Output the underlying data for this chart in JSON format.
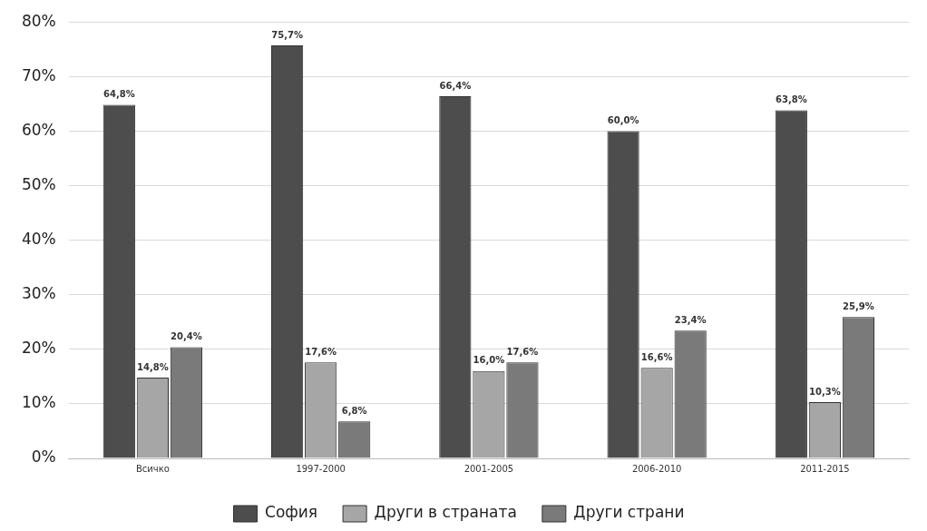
{
  "chart_data": {
    "type": "bar",
    "categories": [
      "Всичко",
      "1997-2000",
      "2001-2005",
      "2006-2010",
      "2011-2015"
    ],
    "series": [
      {
        "name": "София",
        "color": "#4d4d4d",
        "values": [
          64.8,
          75.7,
          66.4,
          60.0,
          63.8
        ],
        "value_labels": [
          "64,8%",
          "75,7%",
          "66,4%",
          "60,0%",
          "63,8%"
        ]
      },
      {
        "name": "Други в страната",
        "color": "#a6a6a6",
        "values": [
          14.8,
          17.6,
          16.0,
          16.6,
          10.3
        ],
        "value_labels": [
          "14,8%",
          "17,6%",
          "16,0%",
          "16,6%",
          "10,3%"
        ]
      },
      {
        "name": "Други страни",
        "color": "#7a7a7a",
        "values": [
          20.4,
          6.8,
          17.6,
          23.4,
          25.9
        ],
        "value_labels": [
          "20,4%",
          "6,8%",
          "17,6%",
          "23,4%",
          "25,9%"
        ]
      }
    ],
    "ylim": [
      0,
      80
    ],
    "yticks": [
      {
        "value": 0,
        "label": "0%"
      },
      {
        "value": 10,
        "label": "10%"
      },
      {
        "value": 20,
        "label": "20%"
      },
      {
        "value": 30,
        "label": "30%"
      },
      {
        "value": 40,
        "label": "40%"
      },
      {
        "value": 50,
        "label": "50%"
      },
      {
        "value": 60,
        "label": "60%"
      },
      {
        "value": 70,
        "label": "70%"
      },
      {
        "value": 80,
        "label": "80%"
      }
    ],
    "grid": "y",
    "legend": "bottom"
  }
}
